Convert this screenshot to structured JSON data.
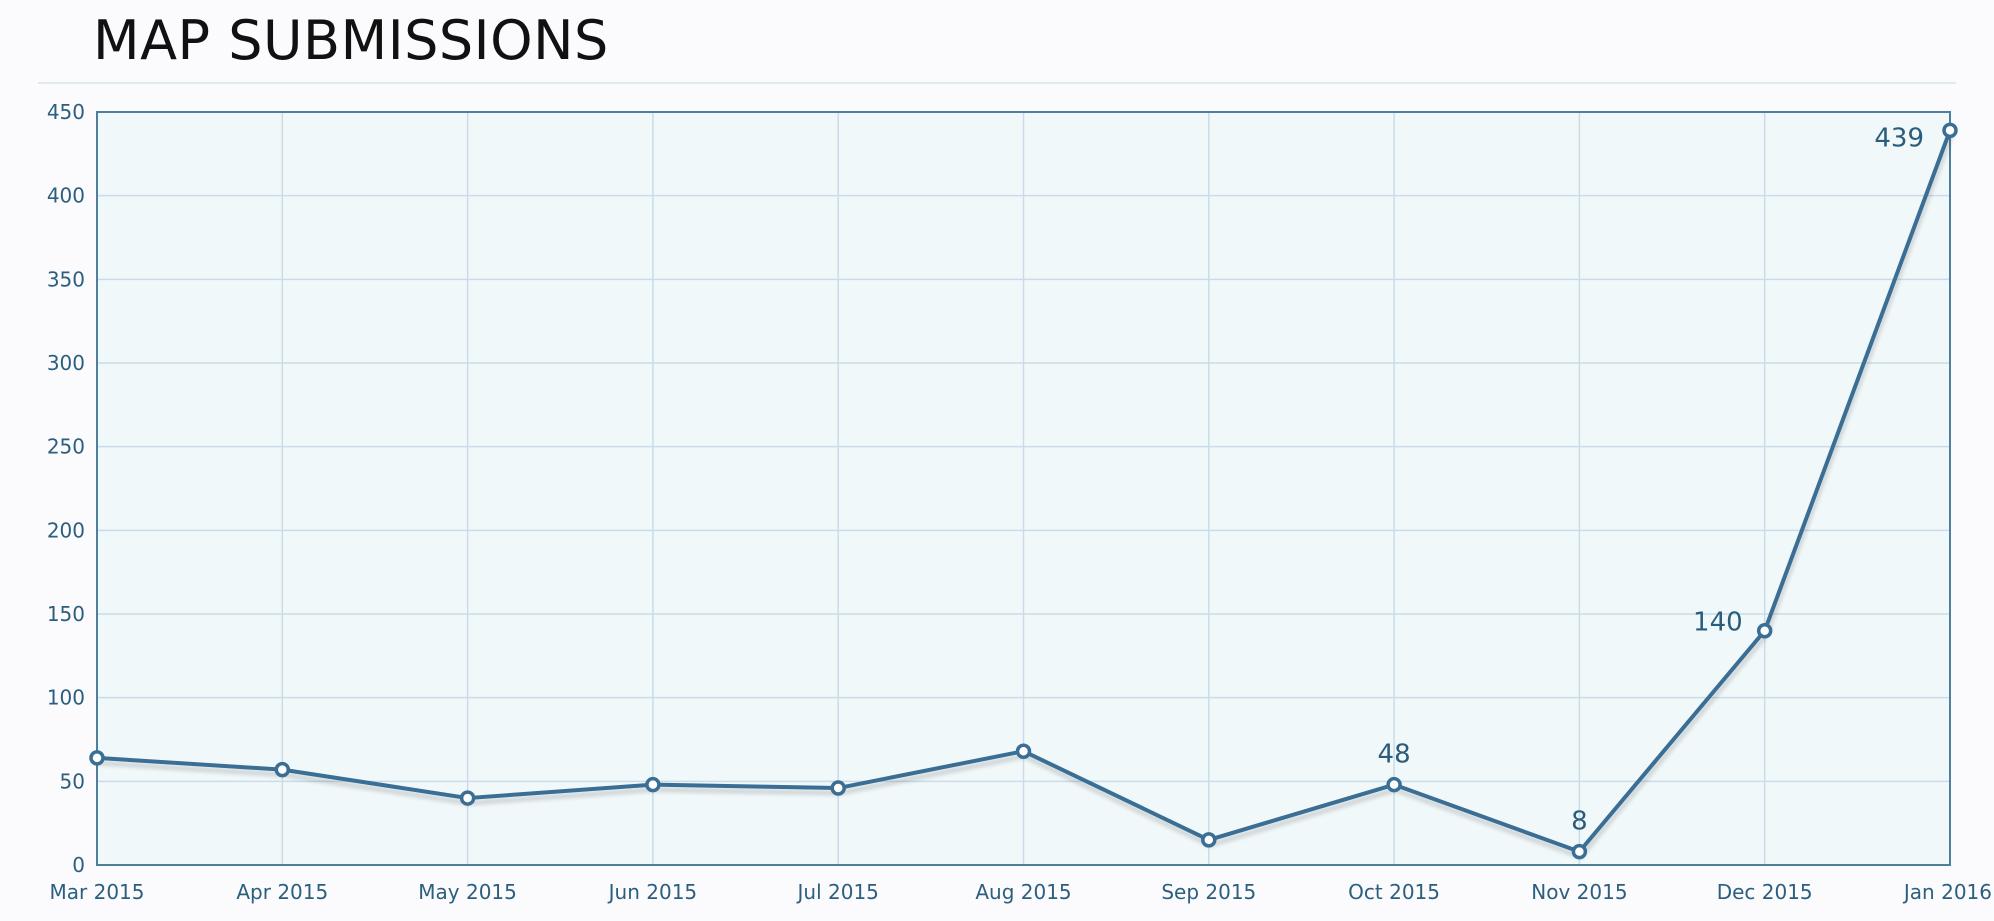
{
  "page": {
    "title": "MAP SUBMISSIONS"
  },
  "chart_data": {
    "type": "line",
    "title": "MAP SUBMISSIONS",
    "xlabel": "",
    "ylabel": "",
    "categories": [
      "Mar 2015",
      "Apr 2015",
      "May 2015",
      "Jun 2015",
      "Jul 2015",
      "Aug 2015",
      "Sep 2015",
      "Oct 2015",
      "Nov 2015",
      "Dec 2015",
      "Jan 2016"
    ],
    "series": [
      {
        "values": [
          64,
          57,
          40,
          48,
          46,
          68,
          15,
          48,
          8,
          140,
          439
        ]
      }
    ],
    "ylim": [
      0,
      450
    ],
    "yticks": [
      0,
      50,
      100,
      150,
      200,
      250,
      300,
      350,
      400,
      450
    ],
    "data_labels": [
      {
        "category": "Oct 2015",
        "value": 48,
        "text": "48"
      },
      {
        "category": "Nov 2015",
        "value": 8,
        "text": "8"
      },
      {
        "category": "Dec 2015",
        "value": 140,
        "text": "140"
      },
      {
        "category": "Jan 2016",
        "value": 439,
        "text": "439"
      }
    ],
    "grid": true,
    "legend": "none",
    "colors": {
      "line": "#3a6e94",
      "marker_fill": "#ffffff",
      "plot_background": "#f1f8fa",
      "grid": "#c9dce8",
      "axis_border": "#4e809e",
      "tick_text": "#2c5f7e"
    }
  }
}
